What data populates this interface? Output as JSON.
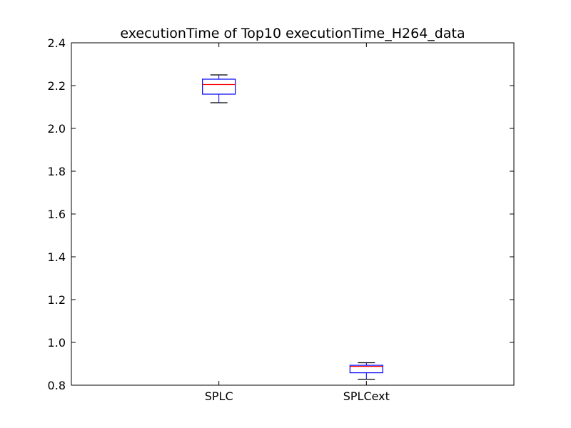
{
  "chart_data": {
    "type": "box",
    "title": "executionTime of Top10 executionTime_H264_data",
    "xlabel": "",
    "ylabel": "",
    "categories": [
      "SPLC",
      "SPLCext"
    ],
    "ylim": [
      0.8,
      2.4
    ],
    "yticks": [
      0.8,
      1.0,
      1.2,
      1.4,
      1.6,
      1.8,
      2.0,
      2.2,
      2.4
    ],
    "ytick_labels": [
      "0.8",
      "1.0",
      "1.2",
      "1.4",
      "1.6",
      "1.8",
      "2.0",
      "2.2",
      "2.4"
    ],
    "grid": false,
    "boxes": [
      {
        "category": "SPLC",
        "whisker_low": 2.12,
        "q1": 2.16,
        "median": 2.205,
        "q3": 2.23,
        "whisker_high": 2.25
      },
      {
        "category": "SPLCext",
        "whisker_low": 0.828,
        "q1": 0.858,
        "median": 0.888,
        "q3": 0.893,
        "whisker_high": 0.905
      }
    ],
    "colors": {
      "box": "#0000ff",
      "median": "#ff0000",
      "whisker": "#0000ff",
      "cap": "#000000"
    }
  }
}
